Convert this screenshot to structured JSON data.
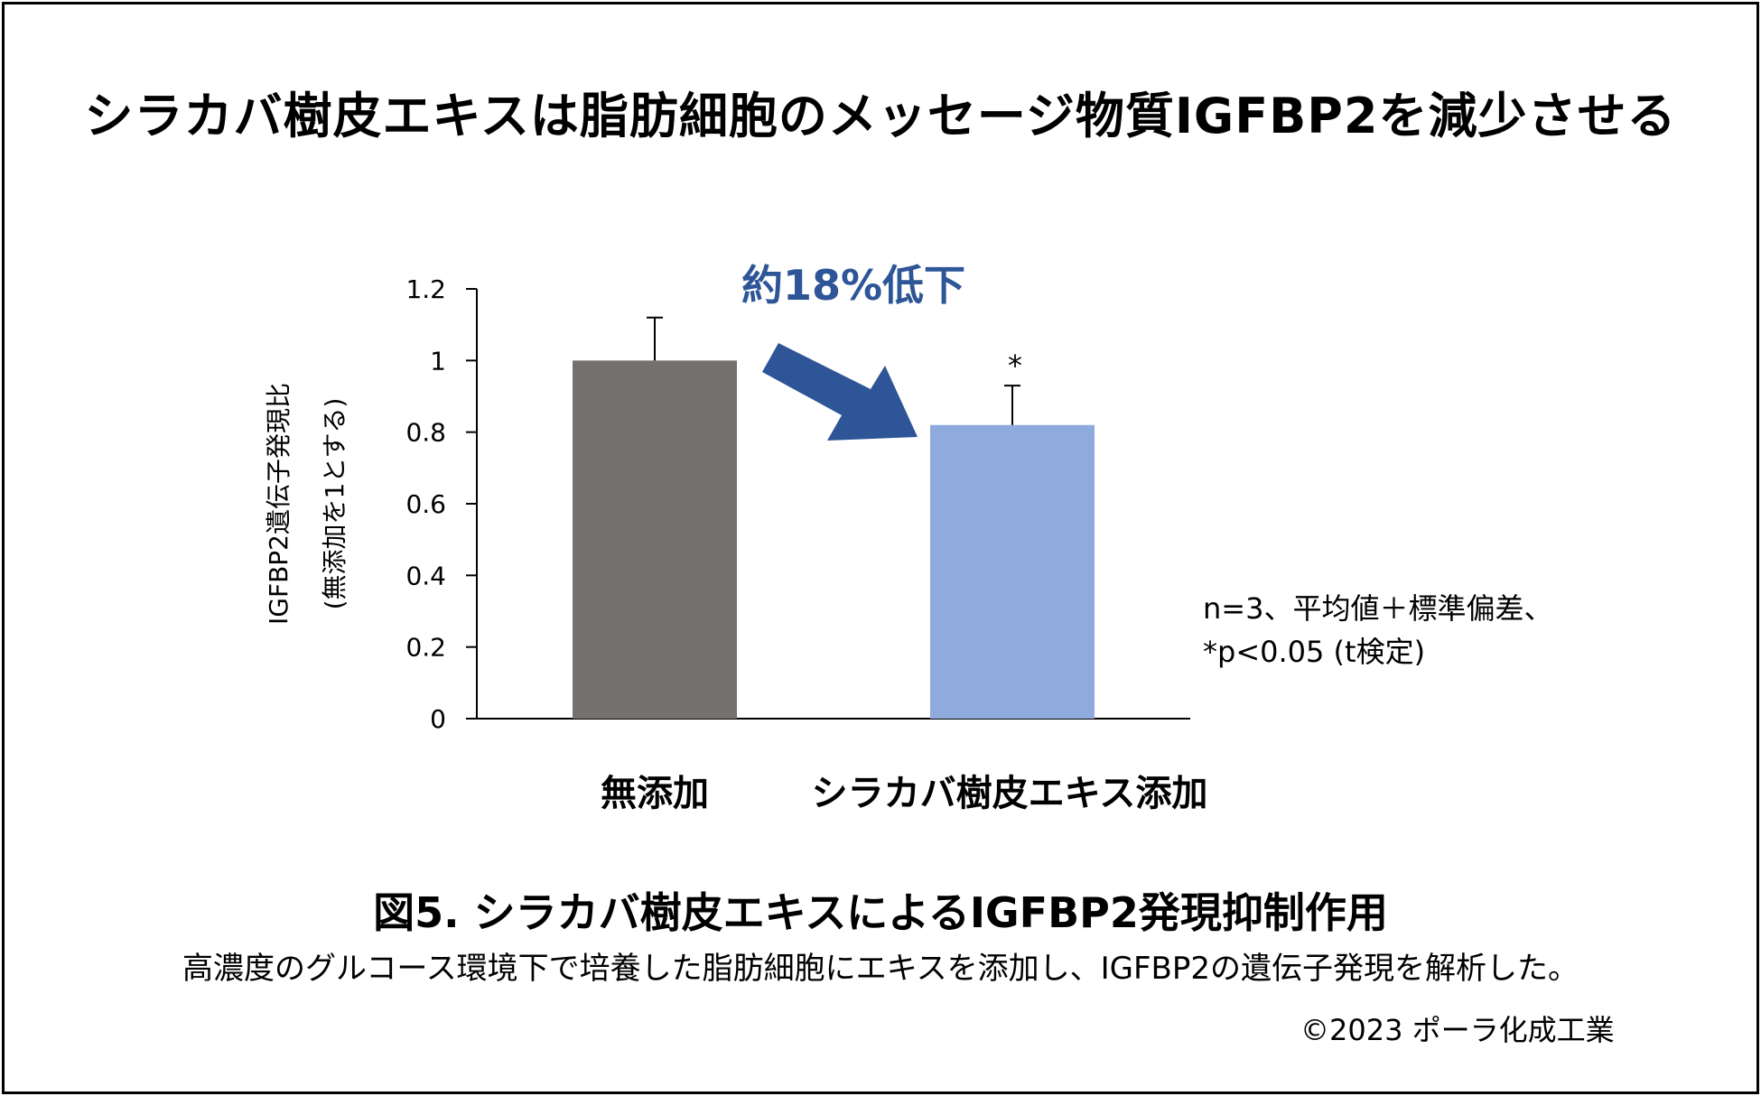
{
  "title": "シラカバ樹皮エキスは脂肪細胞のメッセージ物質IGFBP2を減少させる",
  "notes": [
    "n=3、平均値＋標準偏差、",
    "*p<0.05 (t検定)"
  ],
  "figure_caption": "図5. シラカバ樹皮エキスによるIGFBP2発現抑制作用",
  "figure_description": "高濃度のグルコース環境下で培養した脂肪細胞にエキスを添加し、IGFBP2の遺伝子発現を解析した。",
  "copyright": "©2023 ポーラ化成工業",
  "callout": "約18%低下",
  "significance_mark": "*",
  "colors": {
    "arrow": "#2E5597",
    "callout_text": "#2E5597"
  },
  "chart_data": {
    "type": "bar",
    "categories": [
      "無添加",
      "シラカバ樹皮エキス添加"
    ],
    "values": [
      1.0,
      0.82
    ],
    "error_bars": [
      0.12,
      0.11
    ],
    "colors": [
      "#767171",
      "#8FAADC"
    ],
    "ylabel": [
      "IGFBP2遺伝子発現比",
      "(無添加を1とする)"
    ],
    "ylim": [
      0,
      1.2
    ],
    "yticks": [
      0,
      0.2,
      0.4,
      0.6,
      0.8,
      1,
      1.2
    ],
    "ytick_labels": [
      "0",
      "0.2",
      "0.4",
      "0.6",
      "0.8",
      "1",
      "1.2"
    ],
    "grid": false,
    "legend": "none"
  }
}
